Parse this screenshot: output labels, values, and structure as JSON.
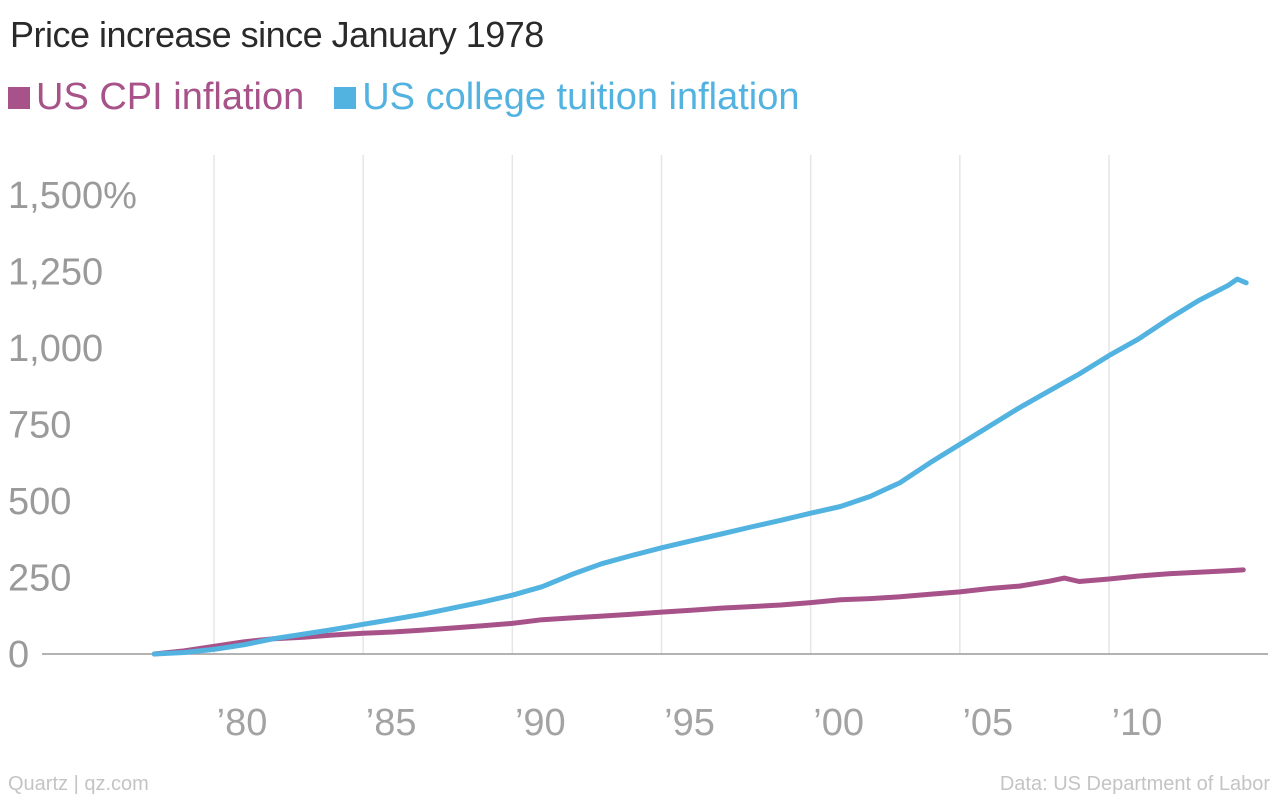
{
  "chart_data": {
    "type": "line",
    "title": "Price increase since January 1978",
    "xlabel": "",
    "ylabel": "",
    "xlim": [
      1978,
      2015
    ],
    "ylim": [
      0,
      1500
    ],
    "y_ticks": [
      {
        "value": 0,
        "label": "0"
      },
      {
        "value": 250,
        "label": "250"
      },
      {
        "value": 500,
        "label": "500"
      },
      {
        "value": 750,
        "label": "750"
      },
      {
        "value": 1000,
        "label": "1,000"
      },
      {
        "value": 1250,
        "label": "1,250"
      },
      {
        "value": 1500,
        "label": "1,500%"
      }
    ],
    "x_ticks": [
      {
        "value": 1980,
        "label": "’80"
      },
      {
        "value": 1985,
        "label": "’85"
      },
      {
        "value": 1990,
        "label": "’90"
      },
      {
        "value": 1995,
        "label": "’95"
      },
      {
        "value": 2000,
        "label": "’00"
      },
      {
        "value": 2005,
        "label": "’05"
      },
      {
        "value": 2010,
        "label": "’10"
      }
    ],
    "grid": "vertical",
    "legend_position": "top-left",
    "series": [
      {
        "name": "US CPI inflation",
        "color": "#a7538a",
        "points": [
          [
            1978,
            0
          ],
          [
            1979,
            10
          ],
          [
            1980,
            25
          ],
          [
            1981,
            40
          ],
          [
            1982,
            50
          ],
          [
            1983,
            55
          ],
          [
            1984,
            62
          ],
          [
            1985,
            68
          ],
          [
            1986,
            72
          ],
          [
            1987,
            78
          ],
          [
            1988,
            85
          ],
          [
            1989,
            92
          ],
          [
            1990,
            100
          ],
          [
            1991,
            112
          ],
          [
            1992,
            118
          ],
          [
            1993,
            124
          ],
          [
            1994,
            130
          ],
          [
            1995,
            137
          ],
          [
            1996,
            143
          ],
          [
            1997,
            150
          ],
          [
            1998,
            155
          ],
          [
            1999,
            160
          ],
          [
            2000,
            168
          ],
          [
            2001,
            177
          ],
          [
            2002,
            181
          ],
          [
            2003,
            187
          ],
          [
            2004,
            195
          ],
          [
            2005,
            203
          ],
          [
            2006,
            214
          ],
          [
            2007,
            222
          ],
          [
            2008,
            238
          ],
          [
            2008.5,
            248
          ],
          [
            2009,
            237
          ],
          [
            2010,
            245
          ],
          [
            2011,
            255
          ],
          [
            2012,
            262
          ],
          [
            2013,
            267
          ],
          [
            2014,
            272
          ],
          [
            2014.5,
            275
          ]
        ]
      },
      {
        "name": "US college tuition inflation",
        "color": "#52b3e1",
        "points": [
          [
            1978,
            0
          ],
          [
            1979,
            5
          ],
          [
            1980,
            15
          ],
          [
            1981,
            30
          ],
          [
            1982,
            50
          ],
          [
            1983,
            65
          ],
          [
            1984,
            80
          ],
          [
            1985,
            97
          ],
          [
            1986,
            113
          ],
          [
            1987,
            130
          ],
          [
            1988,
            150
          ],
          [
            1989,
            170
          ],
          [
            1990,
            192
          ],
          [
            1991,
            220
          ],
          [
            1992,
            260
          ],
          [
            1993,
            295
          ],
          [
            1994,
            322
          ],
          [
            1995,
            347
          ],
          [
            1996,
            370
          ],
          [
            1997,
            392
          ],
          [
            1998,
            415
          ],
          [
            1999,
            437
          ],
          [
            2000,
            460
          ],
          [
            2001,
            482
          ],
          [
            2002,
            515
          ],
          [
            2003,
            560
          ],
          [
            2004,
            625
          ],
          [
            2005,
            685
          ],
          [
            2006,
            745
          ],
          [
            2007,
            805
          ],
          [
            2008,
            860
          ],
          [
            2009,
            915
          ],
          [
            2010,
            975
          ],
          [
            2011,
            1030
          ],
          [
            2012,
            1095
          ],
          [
            2013,
            1155
          ],
          [
            2014,
            1205
          ],
          [
            2014.3,
            1225
          ],
          [
            2014.6,
            1213
          ]
        ]
      }
    ],
    "source": "Data: US Department of Labor",
    "credit": "Quartz | qz.com"
  }
}
